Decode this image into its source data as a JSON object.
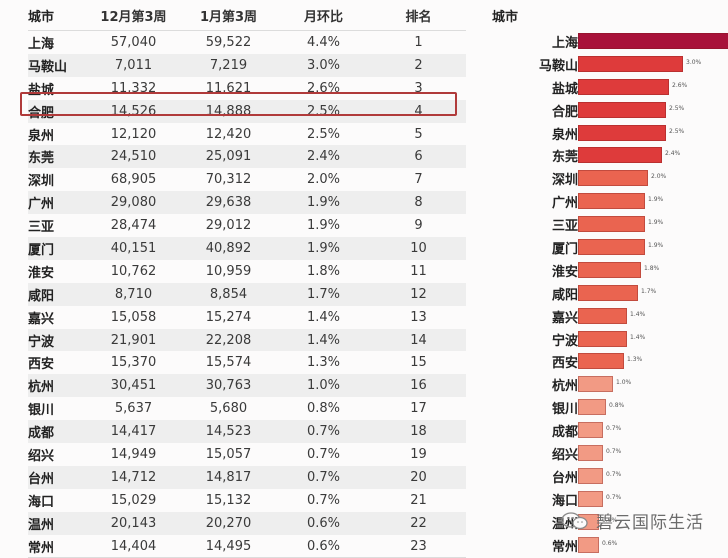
{
  "table": {
    "headers": [
      "城市",
      "12月第3周",
      "1月第3周",
      "月环比",
      "排名"
    ],
    "rows": [
      {
        "city": "上海",
        "dec_w3": "57,040",
        "jan_w3": "59,522",
        "mom": "4.4%",
        "rank": "1"
      },
      {
        "city": "马鞍山",
        "dec_w3": "7,011",
        "jan_w3": "7,219",
        "mom": "3.0%",
        "rank": "2"
      },
      {
        "city": "盐城",
        "dec_w3": "11,332",
        "jan_w3": "11,621",
        "mom": "2.6%",
        "rank": "3"
      },
      {
        "city": "合肥",
        "dec_w3": "14,526",
        "jan_w3": "14,888",
        "mom": "2.5%",
        "rank": "4"
      },
      {
        "city": "泉州",
        "dec_w3": "12,120",
        "jan_w3": "12,420",
        "mom": "2.5%",
        "rank": "5"
      },
      {
        "city": "东莞",
        "dec_w3": "24,510",
        "jan_w3": "25,091",
        "mom": "2.4%",
        "rank": "6"
      },
      {
        "city": "深圳",
        "dec_w3": "68,905",
        "jan_w3": "70,312",
        "mom": "2.0%",
        "rank": "7"
      },
      {
        "city": "广州",
        "dec_w3": "29,080",
        "jan_w3": "29,638",
        "mom": "1.9%",
        "rank": "8"
      },
      {
        "city": "三亚",
        "dec_w3": "28,474",
        "jan_w3": "29,012",
        "mom": "1.9%",
        "rank": "9"
      },
      {
        "city": "厦门",
        "dec_w3": "40,151",
        "jan_w3": "40,892",
        "mom": "1.9%",
        "rank": "10"
      },
      {
        "city": "淮安",
        "dec_w3": "10,762",
        "jan_w3": "10,959",
        "mom": "1.8%",
        "rank": "11"
      },
      {
        "city": "咸阳",
        "dec_w3": "8,710",
        "jan_w3": "8,854",
        "mom": "1.7%",
        "rank": "12"
      },
      {
        "city": "嘉兴",
        "dec_w3": "15,058",
        "jan_w3": "15,274",
        "mom": "1.4%",
        "rank": "13"
      },
      {
        "city": "宁波",
        "dec_w3": "21,901",
        "jan_w3": "22,208",
        "mom": "1.4%",
        "rank": "14"
      },
      {
        "city": "西安",
        "dec_w3": "15,370",
        "jan_w3": "15,574",
        "mom": "1.3%",
        "rank": "15"
      },
      {
        "city": "杭州",
        "dec_w3": "30,451",
        "jan_w3": "30,763",
        "mom": "1.0%",
        "rank": "16"
      },
      {
        "city": "银川",
        "dec_w3": "5,637",
        "jan_w3": "5,680",
        "mom": "0.8%",
        "rank": "17"
      },
      {
        "city": "成都",
        "dec_w3": "14,417",
        "jan_w3": "14,523",
        "mom": "0.7%",
        "rank": "18"
      },
      {
        "city": "绍兴",
        "dec_w3": "14,949",
        "jan_w3": "15,057",
        "mom": "0.7%",
        "rank": "19"
      },
      {
        "city": "台州",
        "dec_w3": "14,712",
        "jan_w3": "14,817",
        "mom": "0.7%",
        "rank": "20"
      },
      {
        "city": "海口",
        "dec_w3": "15,029",
        "jan_w3": "15,132",
        "mom": "0.7%",
        "rank": "21"
      },
      {
        "city": "温州",
        "dec_w3": "20,143",
        "jan_w3": "20,270",
        "mom": "0.6%",
        "rank": "22"
      },
      {
        "city": "常州",
        "dec_w3": "14,404",
        "jan_w3": "14,495",
        "mom": "0.6%",
        "rank": "23"
      }
    ],
    "highlighted_city": "合肥",
    "highlight_color": "#b03a3a"
  },
  "chart_data": {
    "type": "bar",
    "orientation": "horizontal",
    "title": "",
    "category_header": "城市",
    "xlabel": "",
    "ylabel": "城市",
    "categories": [
      "上海",
      "马鞍山",
      "盐城",
      "合肥",
      "泉州",
      "东莞",
      "深圳",
      "广州",
      "三亚",
      "厦门",
      "淮安",
      "咸阳",
      "嘉兴",
      "宁波",
      "西安",
      "杭州",
      "银川",
      "成都",
      "绍兴",
      "台州",
      "海口",
      "温州",
      "常州"
    ],
    "values": [
      4.4,
      3.0,
      2.6,
      2.5,
      2.5,
      2.4,
      2.0,
      1.9,
      1.9,
      1.9,
      1.8,
      1.7,
      1.4,
      1.4,
      1.3,
      1.0,
      0.8,
      0.7,
      0.7,
      0.7,
      0.7,
      0.6,
      0.6
    ],
    "value_labels": [
      "",
      "3.0%",
      "2.6%",
      "2.5%",
      "2.5%",
      "2.4%",
      "2.0%",
      "1.9%",
      "1.9%",
      "1.9%",
      "1.8%",
      "1.7%",
      "1.4%",
      "1.4%",
      "1.3%",
      "1.0%",
      "0.8%",
      "0.7%",
      "0.7%",
      "0.7%",
      "0.7%",
      "0.6%",
      "0.6%"
    ],
    "unit": "%",
    "grid": false,
    "legend": "none",
    "colors": {
      "max": "#a8123a",
      "high": "#de3b3b",
      "mid": "#ea6450",
      "low": "#f29a84"
    }
  },
  "watermark": {
    "icon": "wechat-icon",
    "text": "碧云国际生活"
  }
}
